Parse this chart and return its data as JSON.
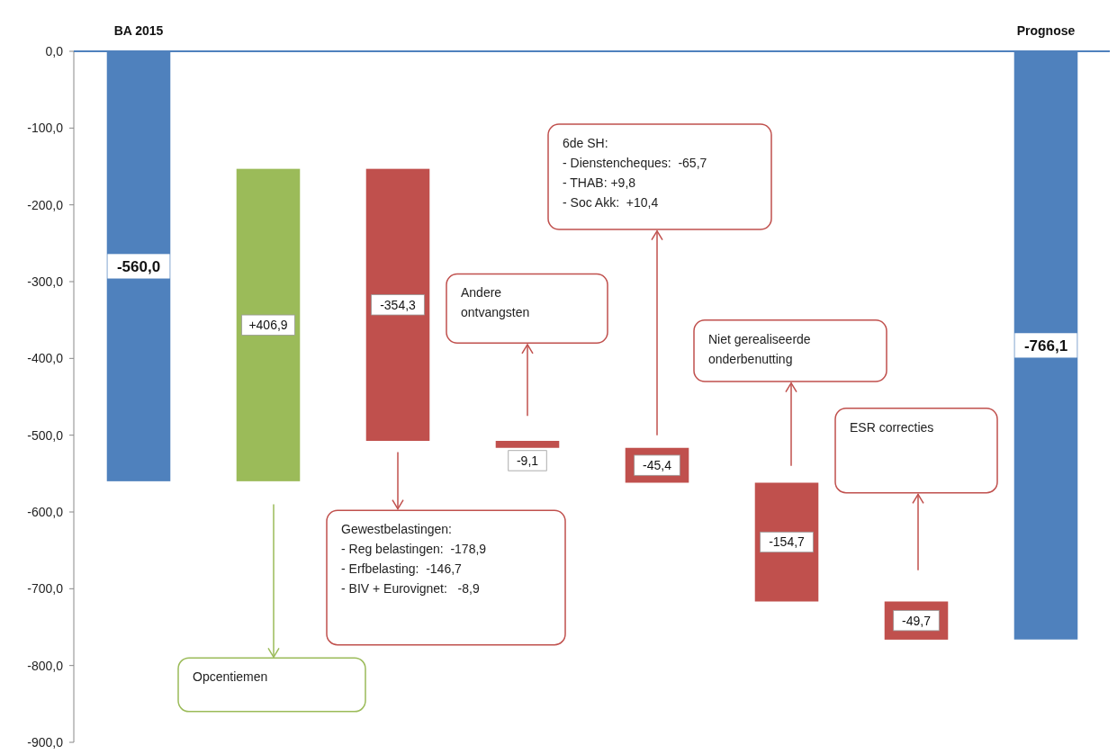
{
  "chart_data": {
    "type": "bar",
    "categories": [
      "BA 2015",
      null,
      null,
      null,
      null,
      null,
      null,
      "Prognose"
    ],
    "values": [
      -560.0,
      406.9,
      -354.3,
      -9.1,
      -45.4,
      -154.7,
      -49.7,
      -766.1
    ],
    "base": [
      0,
      -560.0,
      -153.1,
      -507.4,
      -516.5,
      -561.9,
      -716.6,
      0
    ],
    "colors": [
      "#4f81bd",
      "#9bbb59",
      "#c0504d",
      "#c0504d",
      "#c0504d",
      "#c0504d",
      "#c0504d",
      "#4f81bd"
    ],
    "value_labels": [
      "-560,0",
      "+406,9",
      "-354,3",
      "-9,1",
      "-45,4",
      "-154,7",
      "-49,7",
      "-766,1"
    ],
    "ylim": [
      -900,
      0
    ],
    "yticks": [
      {
        "value": 0,
        "label": "0,0"
      },
      {
        "value": -100,
        "label": "-100,0"
      },
      {
        "value": -200,
        "label": "-200,0"
      },
      {
        "value": -300,
        "label": "-300,0"
      },
      {
        "value": -400,
        "label": "-400,0"
      },
      {
        "value": -500,
        "label": "-500,0"
      },
      {
        "value": -600,
        "label": "-600,0"
      },
      {
        "value": -700,
        "label": "-700,0"
      },
      {
        "value": -800,
        "label": "-800,0"
      },
      {
        "value": -900,
        "label": "-900,0"
      }
    ],
    "annotations": [
      "Opcentiemen",
      "Gewestbelastingen:\n- Reg belastingen:  -178,9\n- Erfbelasting:  -146,7\n- BIV + Eurovignet:   -8,9",
      "Andere\nontvangsten",
      "6de SH:\n- Dienstencheques:  -65,7\n- THAB: +9,8\n- Soc Akk:  +10,4",
      "Niet gerealiseerde\nonderbenutting",
      "ESR correcties"
    ]
  }
}
